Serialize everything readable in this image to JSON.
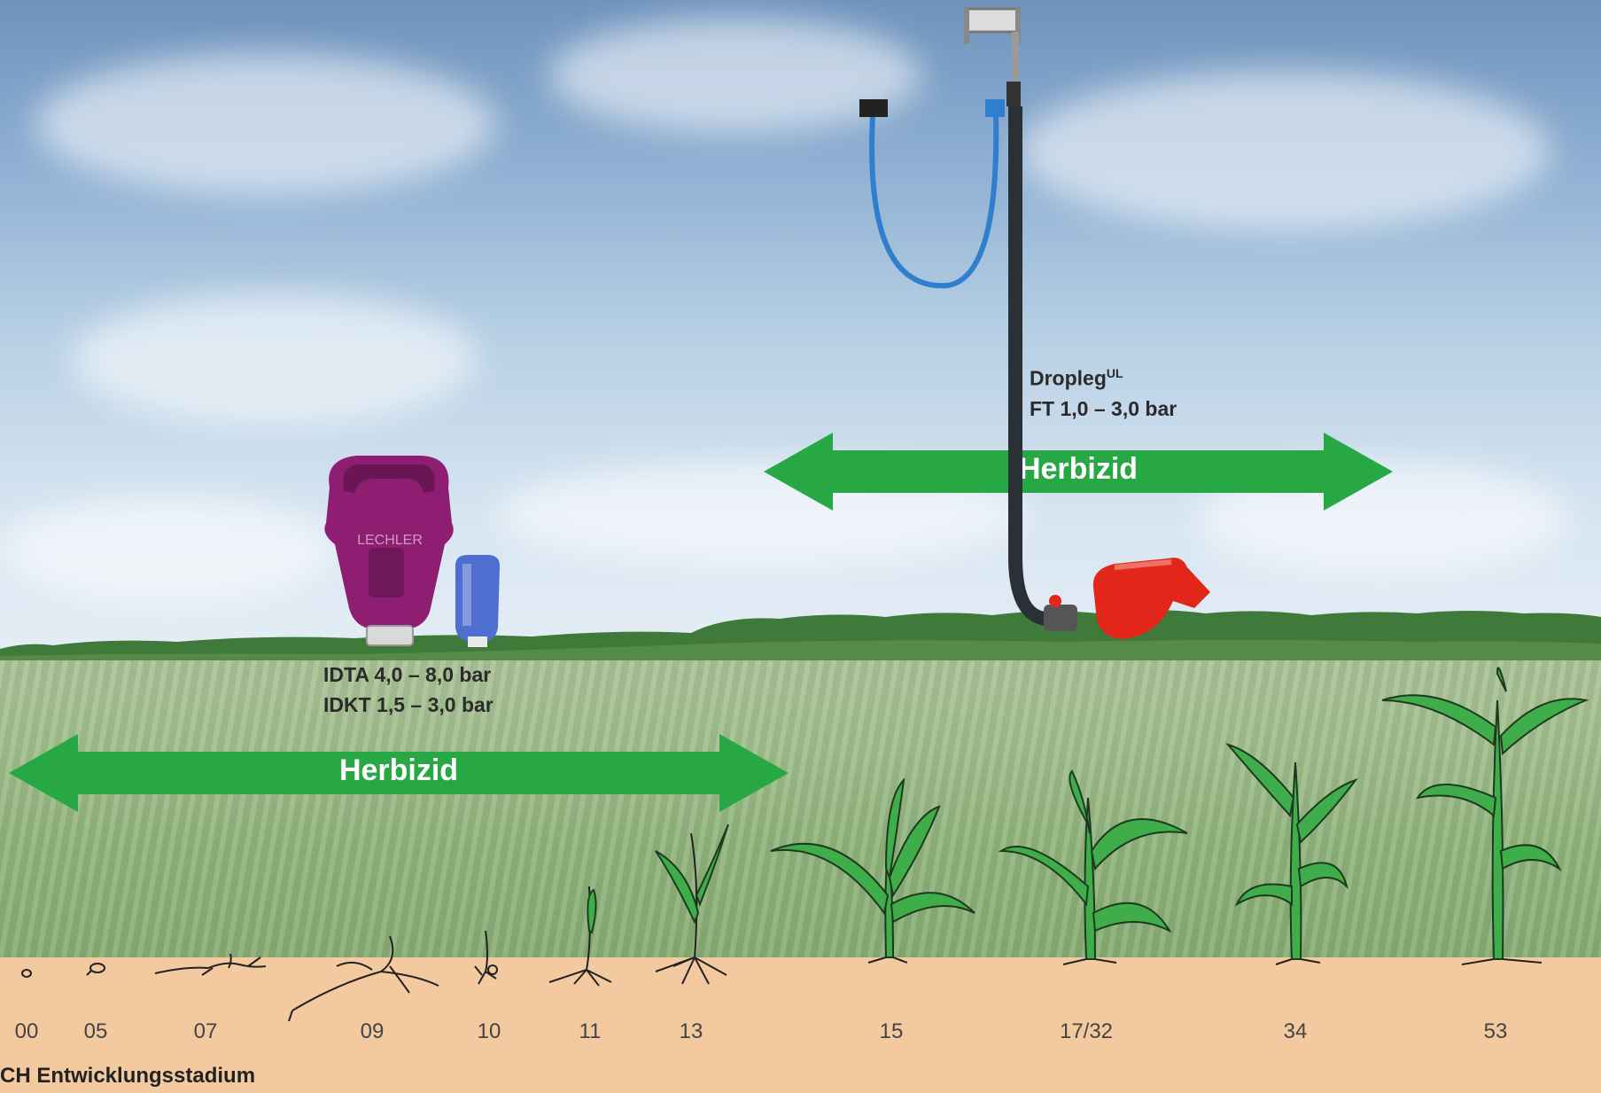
{
  "upper_arrow": {
    "label": "Herbizid",
    "color": "#27a844"
  },
  "lower_arrow": {
    "label": "Herbizid",
    "color": "#27a844"
  },
  "dropleg": {
    "name": "Dropleg",
    "superscript": "UL",
    "pressure": "FT 1,0 – 3,0 bar"
  },
  "nozzles": {
    "line1": "IDTA 4,0 – 8,0 bar",
    "line2": "IDKT 1,5 – 3,0 bar"
  },
  "stages": [
    "00",
    "05",
    "07",
    "09",
    "10",
    "11",
    "13",
    "15",
    "17/32",
    "34",
    "53"
  ],
  "caption": "CH Entwicklungsstadium",
  "nozzle_logo": "LECHLER",
  "icons": {
    "purple_nozzle": "nozzle-icon",
    "blue_nozzle": "nozzle-icon",
    "red_nozzle": "nozzle-icon",
    "dropleg_device": "dropleg-icon"
  },
  "colors": {
    "purple_nozzle": "#8e1e72",
    "blue_nozzle": "#4f6fd0",
    "red_nozzle": "#e3261a",
    "soil": "#f3caa0",
    "plant": "#3fae4a"
  }
}
